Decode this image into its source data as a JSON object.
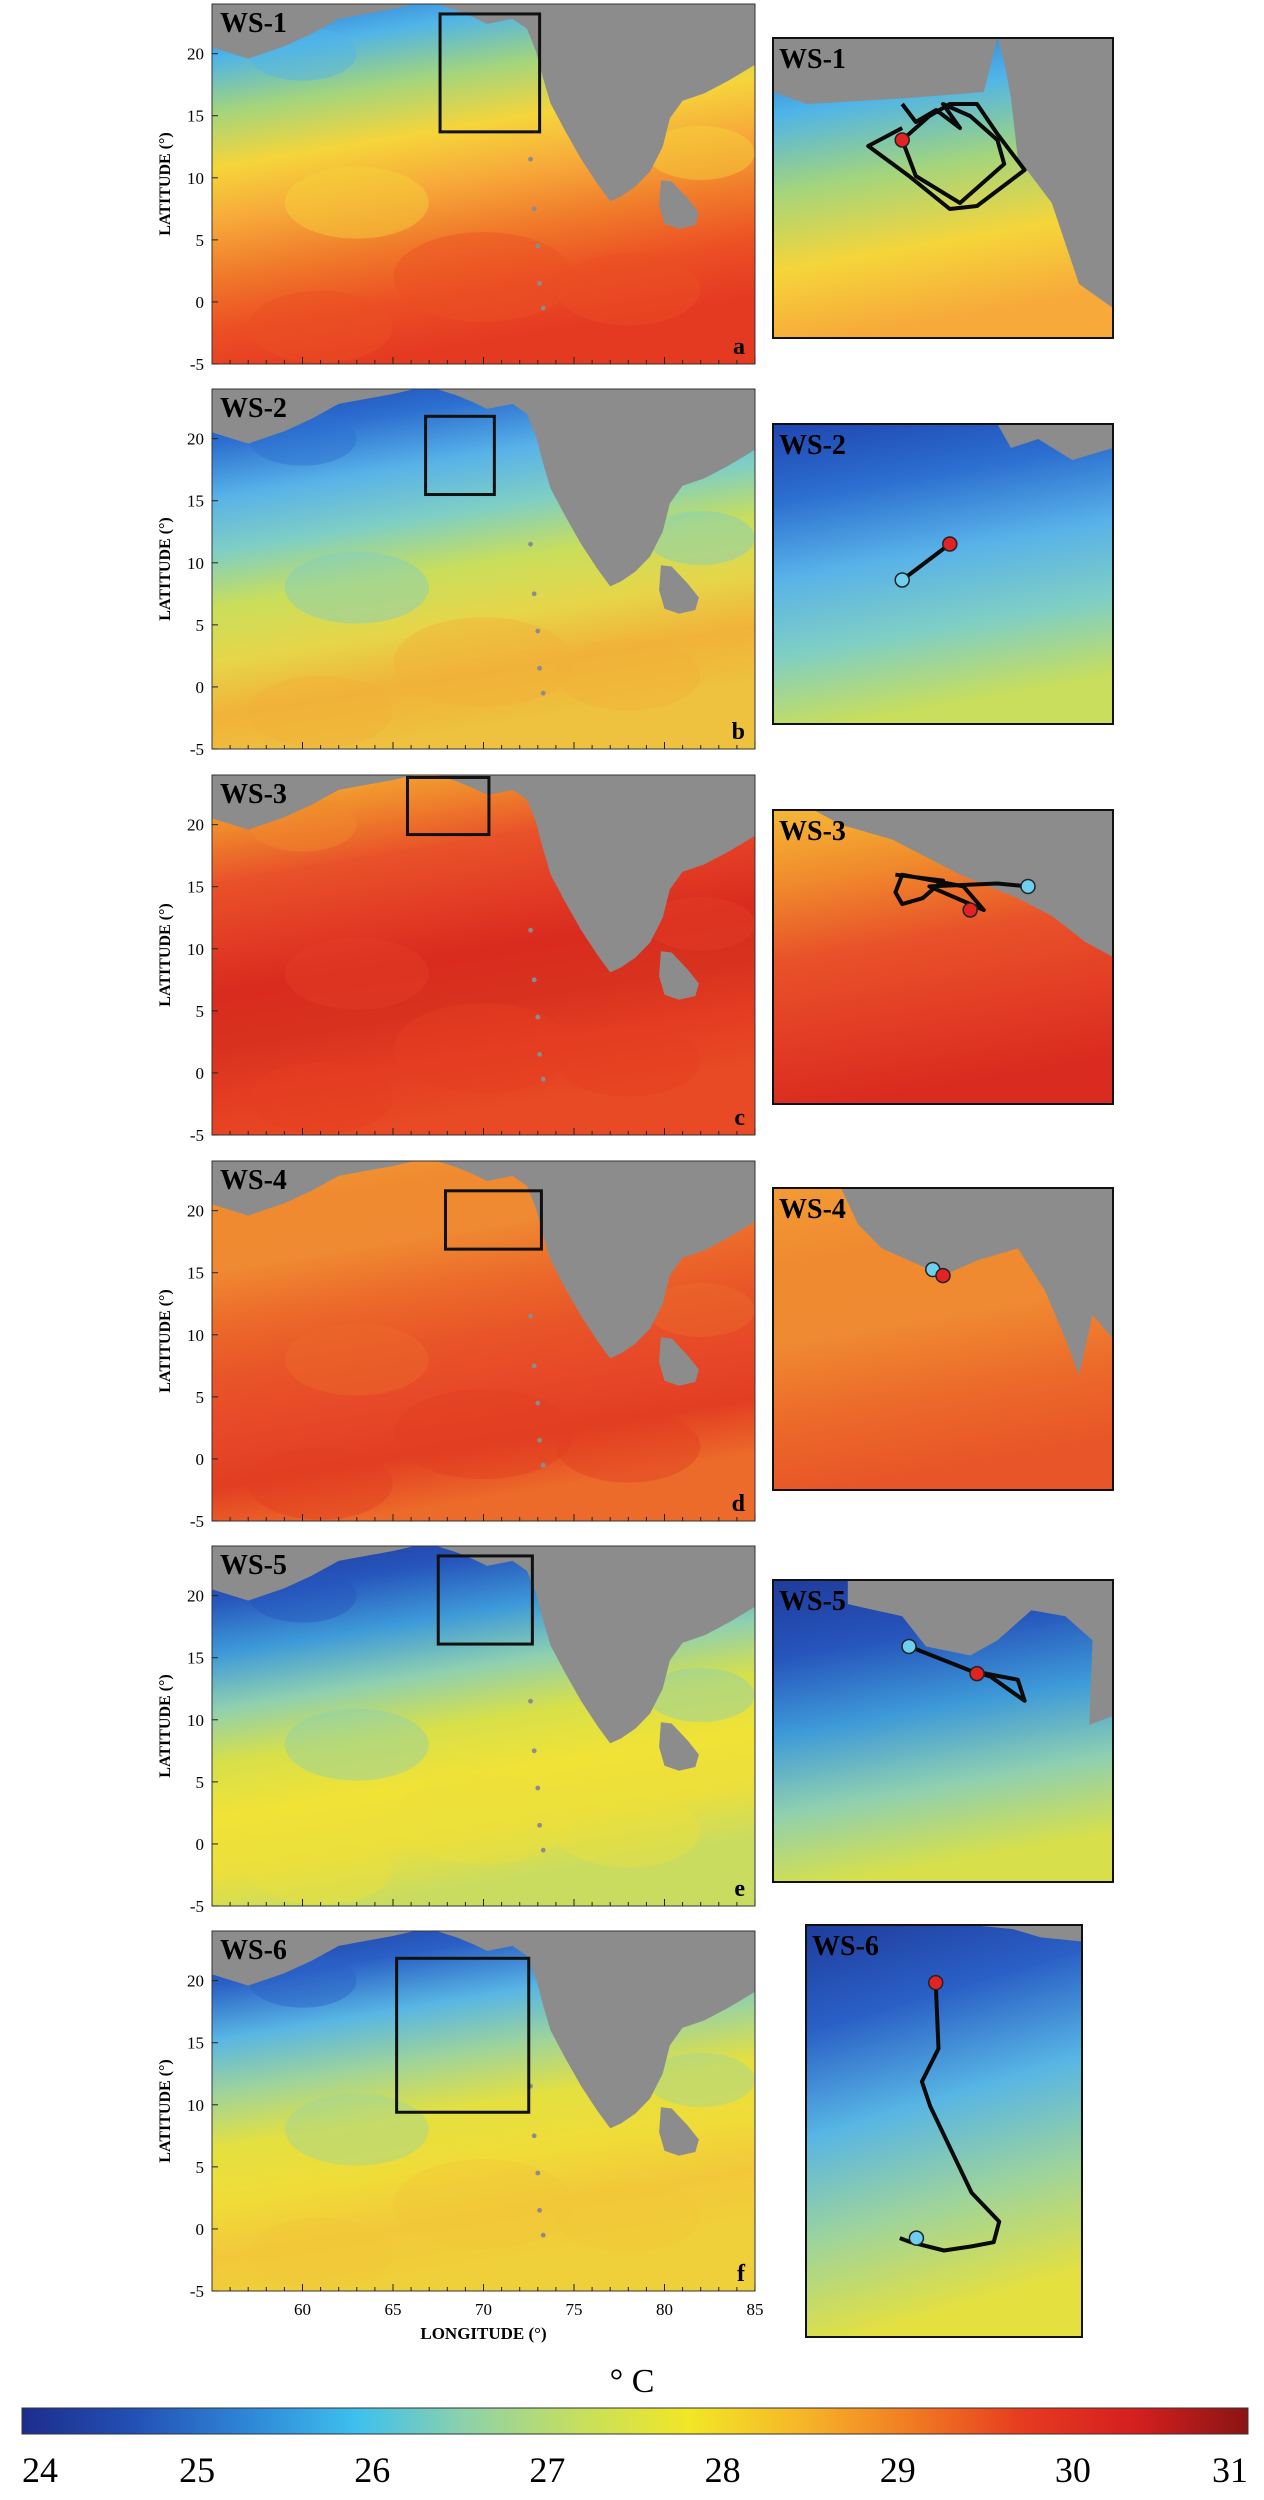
{
  "colors": {
    "land": "#8c8c8c",
    "box": "#111111",
    "track": "#0a0a0a",
    "start_marker": "#e32222",
    "end_marker": "#6ed0ee"
  },
  "axis": {
    "xlabel": "LONGITUDE (°)",
    "ylabel": "LATITUDE (°)",
    "xticks": [
      "60",
      "65",
      "70",
      "75",
      "80",
      "85"
    ],
    "yticks": [
      "20",
      "15",
      "10",
      "5",
      "0",
      "-5"
    ],
    "xlim": [
      55,
      85
    ],
    "ylim": [
      -5,
      24
    ]
  },
  "panels": [
    {
      "label": "WS-1",
      "letter": "a",
      "palette": "ws1",
      "box_lon": [
        67.6,
        73.1
      ],
      "box_lat": [
        13.7,
        23.2
      ],
      "inset_label": "WS-1"
    },
    {
      "label": "WS-2",
      "letter": "b",
      "palette": "ws2",
      "box_lon": [
        66.8,
        70.6
      ],
      "box_lat": [
        15.5,
        21.8
      ],
      "inset_label": "WS-2"
    },
    {
      "label": "WS-3",
      "letter": "c",
      "palette": "ws3",
      "box_lon": [
        65.8,
        70.3
      ],
      "box_lat": [
        19.2,
        23.8
      ],
      "inset_label": "WS-3"
    },
    {
      "label": "WS-4",
      "letter": "d",
      "palette": "ws4",
      "box_lon": [
        67.9,
        73.2
      ],
      "box_lat": [
        16.9,
        21.6
      ],
      "inset_label": "WS-4"
    },
    {
      "label": "WS-5",
      "letter": "e",
      "palette": "ws5",
      "box_lon": [
        67.5,
        72.7
      ],
      "box_lat": [
        16.1,
        23.2
      ],
      "inset_label": "WS-5"
    },
    {
      "label": "WS-6",
      "letter": "f",
      "palette": "ws6",
      "box_lon": [
        65.2,
        72.5
      ],
      "box_lat": [
        9.4,
        21.8
      ],
      "inset_label": "WS-6"
    }
  ],
  "colorbar": {
    "unit": "° C",
    "min": 24,
    "max": 31,
    "ticks": [
      "24",
      "25",
      "26",
      "27",
      "28",
      "29",
      "30",
      "31"
    ],
    "stops": [
      "#1c2d8c",
      "#2350b5",
      "#2e85d6",
      "#3ec0ee",
      "#8fd2a8",
      "#c6df5e",
      "#f2e626",
      "#f6b629",
      "#f17a22",
      "#e63a20",
      "#d41f1f",
      "#8b1414"
    ]
  }
}
